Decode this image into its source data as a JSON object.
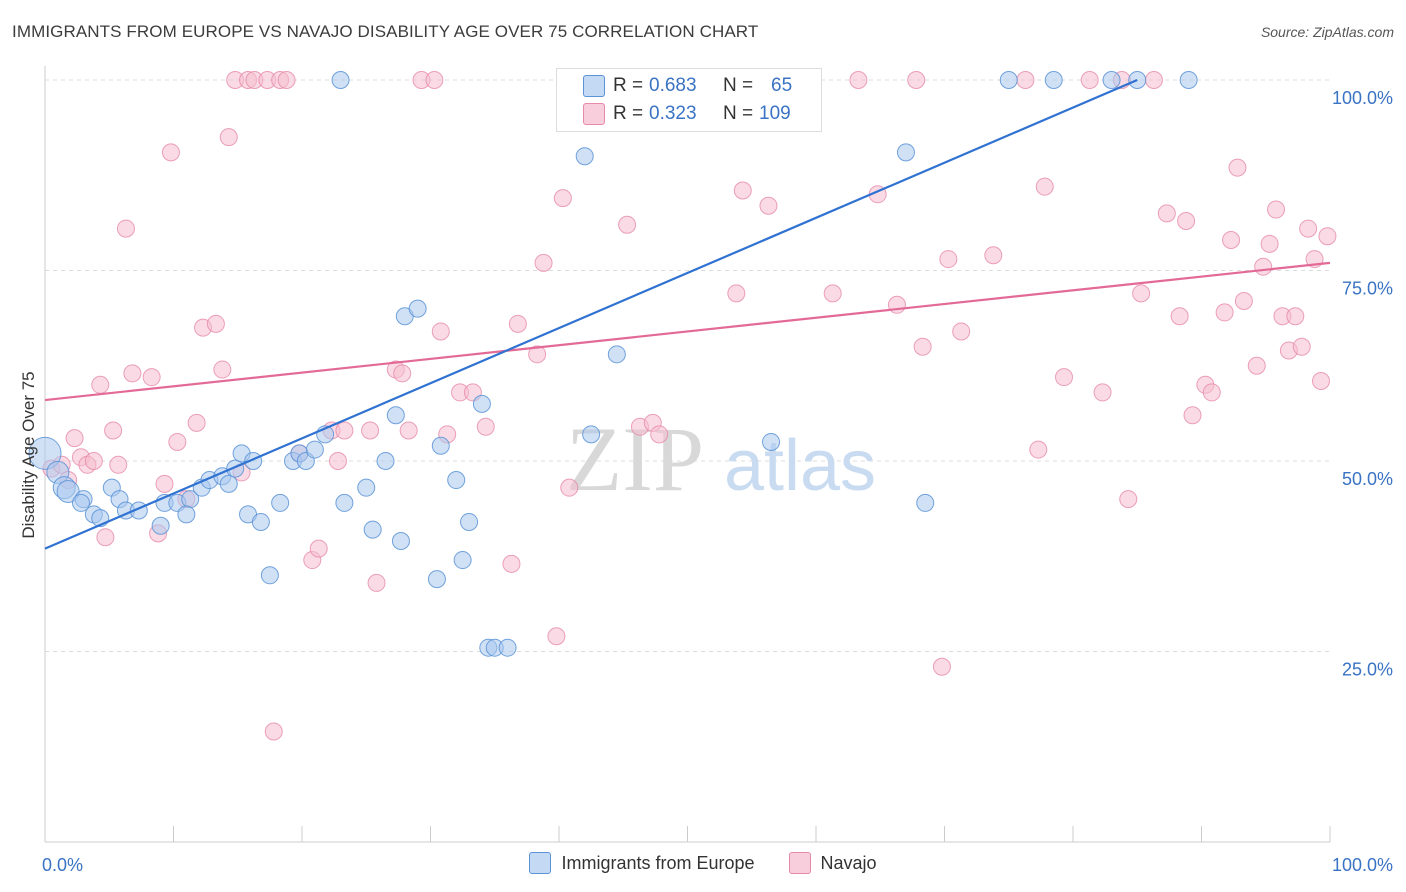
{
  "title": "IMMIGRANTS FROM EUROPE VS NAVAJO DISABILITY AGE OVER 75 CORRELATION CHART",
  "source": "Source: ZipAtlas.com",
  "watermark": {
    "zip": "ZIP",
    "atlas": "atlas"
  },
  "colors": {
    "blue": "#5b93d6",
    "blue_fill": "#a9c8ee",
    "blue_line": "#2f72d2",
    "pink": "#e68aa8",
    "pink_fill": "#f5bdd0",
    "pink_line": "#e36a96",
    "tick_label": "#3a73c4"
  },
  "stats": {
    "blue": {
      "r_label": "R =",
      "r_value": "0.683",
      "n_label": "N =",
      "n_value": "65"
    },
    "pink": {
      "r_label": "R =",
      "r_value": "0.323",
      "n_label": "N =",
      "n_value": "109"
    }
  },
  "legend": {
    "blue_label": "Immigrants from Europe",
    "pink_label": "Navajo"
  },
  "chart_data": {
    "type": "scatter",
    "title": "IMMIGRANTS FROM EUROPE VS NAVAJO DISABILITY AGE OVER 75 CORRELATION CHART",
    "xlabel": "",
    "ylabel": "Disability Age Over 75",
    "xlim": [
      0,
      100
    ],
    "ylim": [
      0,
      100
    ],
    "x_tick_labels": [
      "0.0%",
      "100.0%"
    ],
    "y_tick_labels": [
      "25.0%",
      "50.0%",
      "75.0%",
      "100.0%"
    ],
    "y_ticks": [
      25,
      50,
      75,
      100
    ],
    "grid": "horizontal dashed",
    "legend_position": "bottom",
    "series": [
      {
        "name": "Immigrants from Europe",
        "color": "#5b93d6",
        "trend": {
          "x": [
            0,
            85
          ],
          "y": [
            38.5,
            100
          ]
        },
        "points": [
          [
            0.0,
            51.0
          ],
          [
            1.0,
            48.5
          ],
          [
            1.5,
            46.5
          ],
          [
            1.8,
            46.0
          ],
          [
            3.0,
            45.0
          ],
          [
            2.8,
            44.5
          ],
          [
            3.8,
            43.0
          ],
          [
            4.3,
            42.5
          ],
          [
            5.2,
            46.5
          ],
          [
            5.8,
            45.0
          ],
          [
            6.3,
            43.5
          ],
          [
            7.3,
            43.5
          ],
          [
            9.0,
            41.5
          ],
          [
            9.3,
            44.5
          ],
          [
            10.3,
            44.5
          ],
          [
            11.3,
            45.0
          ],
          [
            11.0,
            43.0
          ],
          [
            12.2,
            46.5
          ],
          [
            12.8,
            47.5
          ],
          [
            13.8,
            48.0
          ],
          [
            14.3,
            47.0
          ],
          [
            14.8,
            49.0
          ],
          [
            15.3,
            51.0
          ],
          [
            16.2,
            50.0
          ],
          [
            15.8,
            43.0
          ],
          [
            16.8,
            42.0
          ],
          [
            18.3,
            44.5
          ],
          [
            19.3,
            50.0
          ],
          [
            19.8,
            51.0
          ],
          [
            20.3,
            50.0
          ],
          [
            21.0,
            51.5
          ],
          [
            21.8,
            53.5
          ],
          [
            23.0,
            100
          ],
          [
            23.3,
            44.5
          ],
          [
            25.0,
            46.5
          ],
          [
            25.5,
            41.0
          ],
          [
            26.5,
            50.0
          ],
          [
            27.3,
            56.0
          ],
          [
            27.7,
            39.5
          ],
          [
            28.0,
            69.0
          ],
          [
            29.0,
            70.0
          ],
          [
            30.5,
            34.5
          ],
          [
            30.8,
            52.0
          ],
          [
            32.0,
            47.5
          ],
          [
            32.5,
            37.0
          ],
          [
            33.0,
            42.0
          ],
          [
            34.0,
            57.5
          ],
          [
            34.5,
            25.5
          ],
          [
            35.0,
            25.5
          ],
          [
            36.0,
            25.5
          ],
          [
            42.0,
            90.0
          ],
          [
            42.5,
            53.5
          ],
          [
            44.5,
            64.0
          ],
          [
            45.3,
            100
          ],
          [
            51.0,
            100
          ],
          [
            56.0,
            100
          ],
          [
            56.5,
            52.5
          ],
          [
            67.0,
            90.5
          ],
          [
            68.5,
            44.5
          ],
          [
            75.0,
            100
          ],
          [
            78.5,
            100
          ],
          [
            89.0,
            100
          ],
          [
            85.0,
            100
          ],
          [
            83.0,
            100
          ],
          [
            17.5,
            35.0
          ]
        ]
      },
      {
        "name": "Navajo",
        "color": "#e68aa8",
        "trend": {
          "x": [
            0,
            100
          ],
          "y": [
            58,
            76
          ]
        },
        "points": [
          [
            0.5,
            49.0
          ],
          [
            1.3,
            49.5
          ],
          [
            1.8,
            47.5
          ],
          [
            2.3,
            53.0
          ],
          [
            2.8,
            50.5
          ],
          [
            3.3,
            49.5
          ],
          [
            3.8,
            50.0
          ],
          [
            4.3,
            60.0
          ],
          [
            4.7,
            40.0
          ],
          [
            5.3,
            54.0
          ],
          [
            5.7,
            49.5
          ],
          [
            6.3,
            80.5
          ],
          [
            6.8,
            61.5
          ],
          [
            8.3,
            61.0
          ],
          [
            8.8,
            40.5
          ],
          [
            9.3,
            47.0
          ],
          [
            9.8,
            90.5
          ],
          [
            10.3,
            52.5
          ],
          [
            11.0,
            45.0
          ],
          [
            11.8,
            55.0
          ],
          [
            12.3,
            67.5
          ],
          [
            13.3,
            68.0
          ],
          [
            13.8,
            62.0
          ],
          [
            14.3,
            92.5
          ],
          [
            15.3,
            48.5
          ],
          [
            14.8,
            100
          ],
          [
            15.8,
            100
          ],
          [
            16.3,
            100
          ],
          [
            17.3,
            100
          ],
          [
            18.3,
            100
          ],
          [
            18.8,
            100
          ],
          [
            19.8,
            51.0
          ],
          [
            17.8,
            14.5
          ],
          [
            20.8,
            37.0
          ],
          [
            21.3,
            38.5
          ],
          [
            22.3,
            54.0
          ],
          [
            22.8,
            50.0
          ],
          [
            23.3,
            54.0
          ],
          [
            25.3,
            54.0
          ],
          [
            25.8,
            34.0
          ],
          [
            27.3,
            62.0
          ],
          [
            27.8,
            61.5
          ],
          [
            28.3,
            54.0
          ],
          [
            29.3,
            100
          ],
          [
            30.3,
            100
          ],
          [
            30.8,
            67.0
          ],
          [
            31.3,
            53.5
          ],
          [
            32.3,
            59.0
          ],
          [
            33.3,
            59.0
          ],
          [
            34.3,
            54.5
          ],
          [
            36.3,
            36.5
          ],
          [
            36.8,
            68.0
          ],
          [
            38.3,
            64.0
          ],
          [
            38.8,
            76.0
          ],
          [
            39.8,
            27.0
          ],
          [
            40.3,
            84.5
          ],
          [
            40.8,
            46.5
          ],
          [
            44.3,
            100
          ],
          [
            45.3,
            81.0
          ],
          [
            46.3,
            54.5
          ],
          [
            47.3,
            55.0
          ],
          [
            47.8,
            53.5
          ],
          [
            51.3,
            100
          ],
          [
            53.8,
            72.0
          ],
          [
            54.3,
            85.5
          ],
          [
            56.3,
            83.5
          ],
          [
            58.3,
            100
          ],
          [
            61.3,
            72.0
          ],
          [
            63.3,
            100
          ],
          [
            64.8,
            85.0
          ],
          [
            66.3,
            70.5
          ],
          [
            67.8,
            100
          ],
          [
            68.3,
            65.0
          ],
          [
            69.8,
            23.0
          ],
          [
            70.3,
            76.5
          ],
          [
            71.3,
            67.0
          ],
          [
            73.8,
            77.0
          ],
          [
            76.3,
            100
          ],
          [
            77.3,
            51.5
          ],
          [
            77.8,
            86.0
          ],
          [
            79.3,
            61.0
          ],
          [
            81.3,
            100
          ],
          [
            82.3,
            59.0
          ],
          [
            83.8,
            100
          ],
          [
            84.3,
            45.0
          ],
          [
            85.3,
            72.0
          ],
          [
            86.3,
            100
          ],
          [
            87.3,
            82.5
          ],
          [
            88.3,
            69.0
          ],
          [
            88.8,
            81.5
          ],
          [
            89.3,
            56.0
          ],
          [
            90.3,
            60.0
          ],
          [
            90.8,
            59.0
          ],
          [
            91.8,
            69.5
          ],
          [
            92.3,
            79.0
          ],
          [
            92.8,
            88.5
          ],
          [
            93.3,
            71.0
          ],
          [
            94.3,
            62.5
          ],
          [
            94.8,
            75.5
          ],
          [
            95.3,
            78.5
          ],
          [
            95.8,
            83.0
          ],
          [
            96.3,
            69.0
          ],
          [
            96.8,
            64.5
          ],
          [
            97.3,
            69.0
          ],
          [
            97.8,
            65.0
          ],
          [
            98.3,
            80.5
          ],
          [
            98.8,
            76.5
          ],
          [
            99.3,
            60.5
          ],
          [
            99.8,
            79.5
          ]
        ]
      }
    ]
  }
}
